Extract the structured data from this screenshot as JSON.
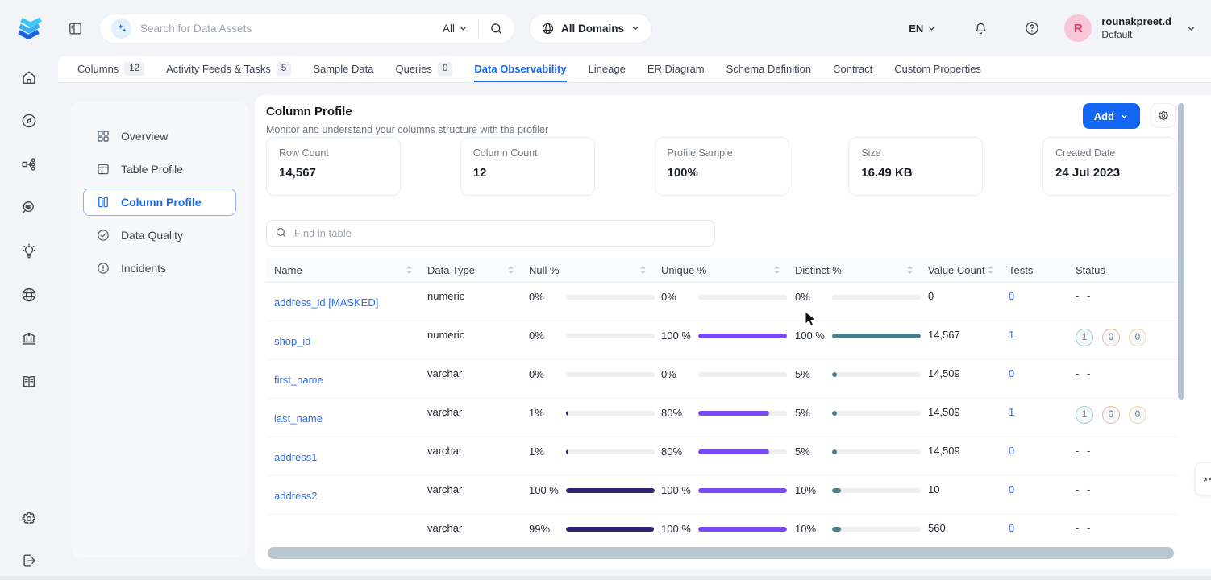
{
  "topbar": {
    "search_placeholder": "Search for Data Assets",
    "search_scope": "All",
    "domains_label": "All Domains",
    "language": "EN",
    "user_initial": "R",
    "user_name": "rounakpreet.d",
    "user_workspace": "Default"
  },
  "tabs": [
    {
      "label": "Columns",
      "count": "12"
    },
    {
      "label": "Activity Feeds & Tasks",
      "count": "5"
    },
    {
      "label": "Sample Data"
    },
    {
      "label": "Queries",
      "count": "0"
    },
    {
      "label": "Data Observability",
      "active": true
    },
    {
      "label": "Lineage"
    },
    {
      "label": "ER Diagram"
    },
    {
      "label": "Schema Definition"
    },
    {
      "label": "Contract"
    },
    {
      "label": "Custom Properties"
    }
  ],
  "sidebar": {
    "top_icons": [
      "home",
      "explore-compass",
      "lineage-graph",
      "observability-search-eye",
      "insights-bulb",
      "domains-globe",
      "governance-bank",
      "glossary-book"
    ],
    "bottom_icons": [
      "settings-gear",
      "logout"
    ]
  },
  "profile_nav": [
    {
      "label": "Overview",
      "icon": "overview-grid"
    },
    {
      "label": "Table Profile",
      "icon": "table-profile"
    },
    {
      "label": "Column Profile",
      "icon": "column-profile",
      "active": true
    },
    {
      "label": "Data Quality",
      "icon": "data-quality-check"
    },
    {
      "label": "Incidents",
      "icon": "incidents-alert"
    }
  ],
  "main": {
    "title": "Column Profile",
    "subtitle": "Monitor and understand your columns structure with the profiler",
    "add_button": "Add",
    "stats": [
      {
        "label": "Row Count",
        "value": "14,567"
      },
      {
        "label": "Column Count",
        "value": "12"
      },
      {
        "label": "Profile Sample",
        "value": "100%"
      },
      {
        "label": "Size",
        "value": "16.49 KB"
      },
      {
        "label": "Created Date",
        "value": "24 Jul 2023"
      }
    ],
    "table": {
      "search_placeholder": "Find in table",
      "columns": [
        {
          "label": "Name",
          "sortable": true
        },
        {
          "label": "Data Type",
          "sortable": true
        },
        {
          "label": "Null %",
          "sortable": true
        },
        {
          "label": "Unique %",
          "sortable": true
        },
        {
          "label": "Distinct %",
          "sortable": true
        },
        {
          "label": "Value Count",
          "sortable": true
        },
        {
          "label": "Tests",
          "sortable": false
        },
        {
          "label": "Status",
          "sortable": false
        }
      ],
      "rows": [
        {
          "name": "address_id [MASKED]",
          "data_type": "numeric",
          "null_label": "0%",
          "null_pct": 0,
          "unique_label": "0%",
          "unique_pct": 0,
          "distinct_label": "0%",
          "distinct_pct": 0,
          "value_count": "0",
          "tests": "0",
          "status_text": "- -"
        },
        {
          "name": "shop_id",
          "data_type": "numeric",
          "null_label": "0%",
          "null_pct": 0,
          "unique_label": "100 %",
          "unique_pct": 100,
          "distinct_label": "100 %",
          "distinct_pct": 100,
          "value_count": "14,567",
          "tests": "1",
          "badges": [
            {
              "value": "1",
              "color": "teal"
            },
            {
              "value": "0",
              "color": "orange"
            },
            {
              "value": "0",
              "color": "yellow"
            }
          ]
        },
        {
          "name": "first_name",
          "data_type": "varchar",
          "null_label": "0%",
          "null_pct": 0,
          "unique_label": "0%",
          "unique_pct": 0,
          "distinct_label": "5%",
          "distinct_pct": 5,
          "value_count": "14,509",
          "tests": "0",
          "status_text": "- -"
        },
        {
          "name": "last_name",
          "data_type": "varchar",
          "null_label": "1%",
          "null_pct": 1,
          "unique_label": "80%",
          "unique_pct": 80,
          "distinct_label": "5%",
          "distinct_pct": 5,
          "value_count": "14,509",
          "tests": "1",
          "badges": [
            {
              "value": "1",
              "color": "teal"
            },
            {
              "value": "0",
              "color": "orange"
            },
            {
              "value": "0",
              "color": "yellow"
            }
          ]
        },
        {
          "name": "address1",
          "data_type": "varchar",
          "null_label": "1%",
          "null_pct": 1,
          "unique_label": "80%",
          "unique_pct": 80,
          "distinct_label": "5%",
          "distinct_pct": 5,
          "value_count": "14,509",
          "tests": "0",
          "status_text": "- -"
        },
        {
          "name": "address2",
          "data_type": "varchar",
          "null_label": "100 %",
          "null_pct": 100,
          "unique_label": "100 %",
          "unique_pct": 100,
          "distinct_label": "10%",
          "distinct_pct": 10,
          "value_count": "10",
          "tests": "0",
          "status_text": "- -"
        },
        {
          "name": "",
          "data_type": "varchar",
          "null_label": "99%",
          "null_pct": 99,
          "unique_label": "100 %",
          "unique_pct": 100,
          "distinct_label": "10%",
          "distinct_pct": 10,
          "value_count": "560",
          "tests": "0",
          "status_text": "- -"
        }
      ]
    }
  },
  "colors": {
    "accent": "#1467f2",
    "null_bar": "#2a2273",
    "unique_bar": "#7a4bf0",
    "distinct_bar": "#45808d",
    "link": "#2e6ff2",
    "badge_teal": "#8fd0cb",
    "badge_orange": "#efb4a4",
    "badge_yellow": "#eed6a0",
    "avatar_bg": "#f9c6d8",
    "avatar_text": "#cf3a74"
  }
}
